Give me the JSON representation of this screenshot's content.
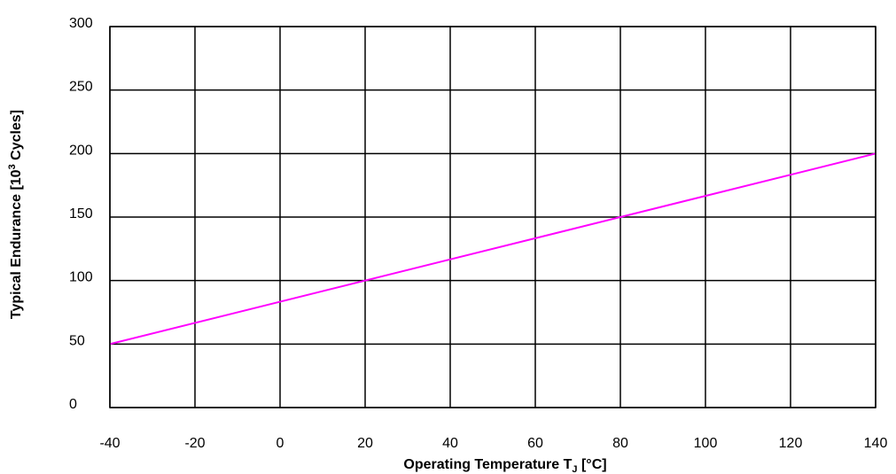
{
  "chart_data": {
    "type": "line",
    "xlabel": {
      "main": "Operating Temperature T",
      "sub": "J",
      "unit": " [°C]"
    },
    "ylabel": {
      "pre": "Typical Endurance [10",
      "sup": "3",
      "post": " Cycles]"
    },
    "xlim": [
      -40,
      140
    ],
    "ylim": [
      0,
      300
    ],
    "x_ticks": [
      -40,
      -20,
      0,
      20,
      40,
      60,
      80,
      100,
      120,
      140
    ],
    "y_ticks": [
      0,
      50,
      100,
      150,
      200,
      250,
      300
    ],
    "grid": true,
    "series": [
      {
        "color": "#ff00ff",
        "x": [
          -40,
          140
        ],
        "y": [
          50,
          200
        ]
      }
    ]
  }
}
